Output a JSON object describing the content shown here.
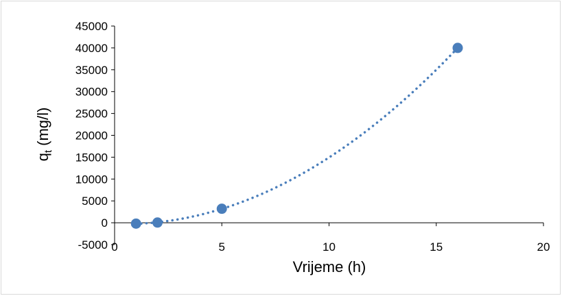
{
  "chart_data": {
    "type": "scatter",
    "title": "",
    "xlabel": "Vrijeme (h)",
    "ylabel": {
      "main": "q",
      "sub": "t",
      "unit": " (mg/l)"
    },
    "xlim": [
      0,
      20
    ],
    "ylim": [
      -5000,
      45000
    ],
    "x_ticks": [
      0,
      5,
      10,
      15,
      20
    ],
    "y_ticks": [
      -5000,
      0,
      5000,
      10000,
      15000,
      20000,
      25000,
      30000,
      35000,
      40000,
      45000
    ],
    "grid": false,
    "legend": "none",
    "marker_color": "#4a7ebb",
    "trendline": {
      "type": "polynomial",
      "order": 2,
      "style": "dotted",
      "color": "#4a7ebb"
    },
    "series": [
      {
        "x": [
          1,
          2,
          5,
          16
        ],
        "y": [
          -200,
          50,
          3200,
          40000
        ]
      }
    ]
  }
}
